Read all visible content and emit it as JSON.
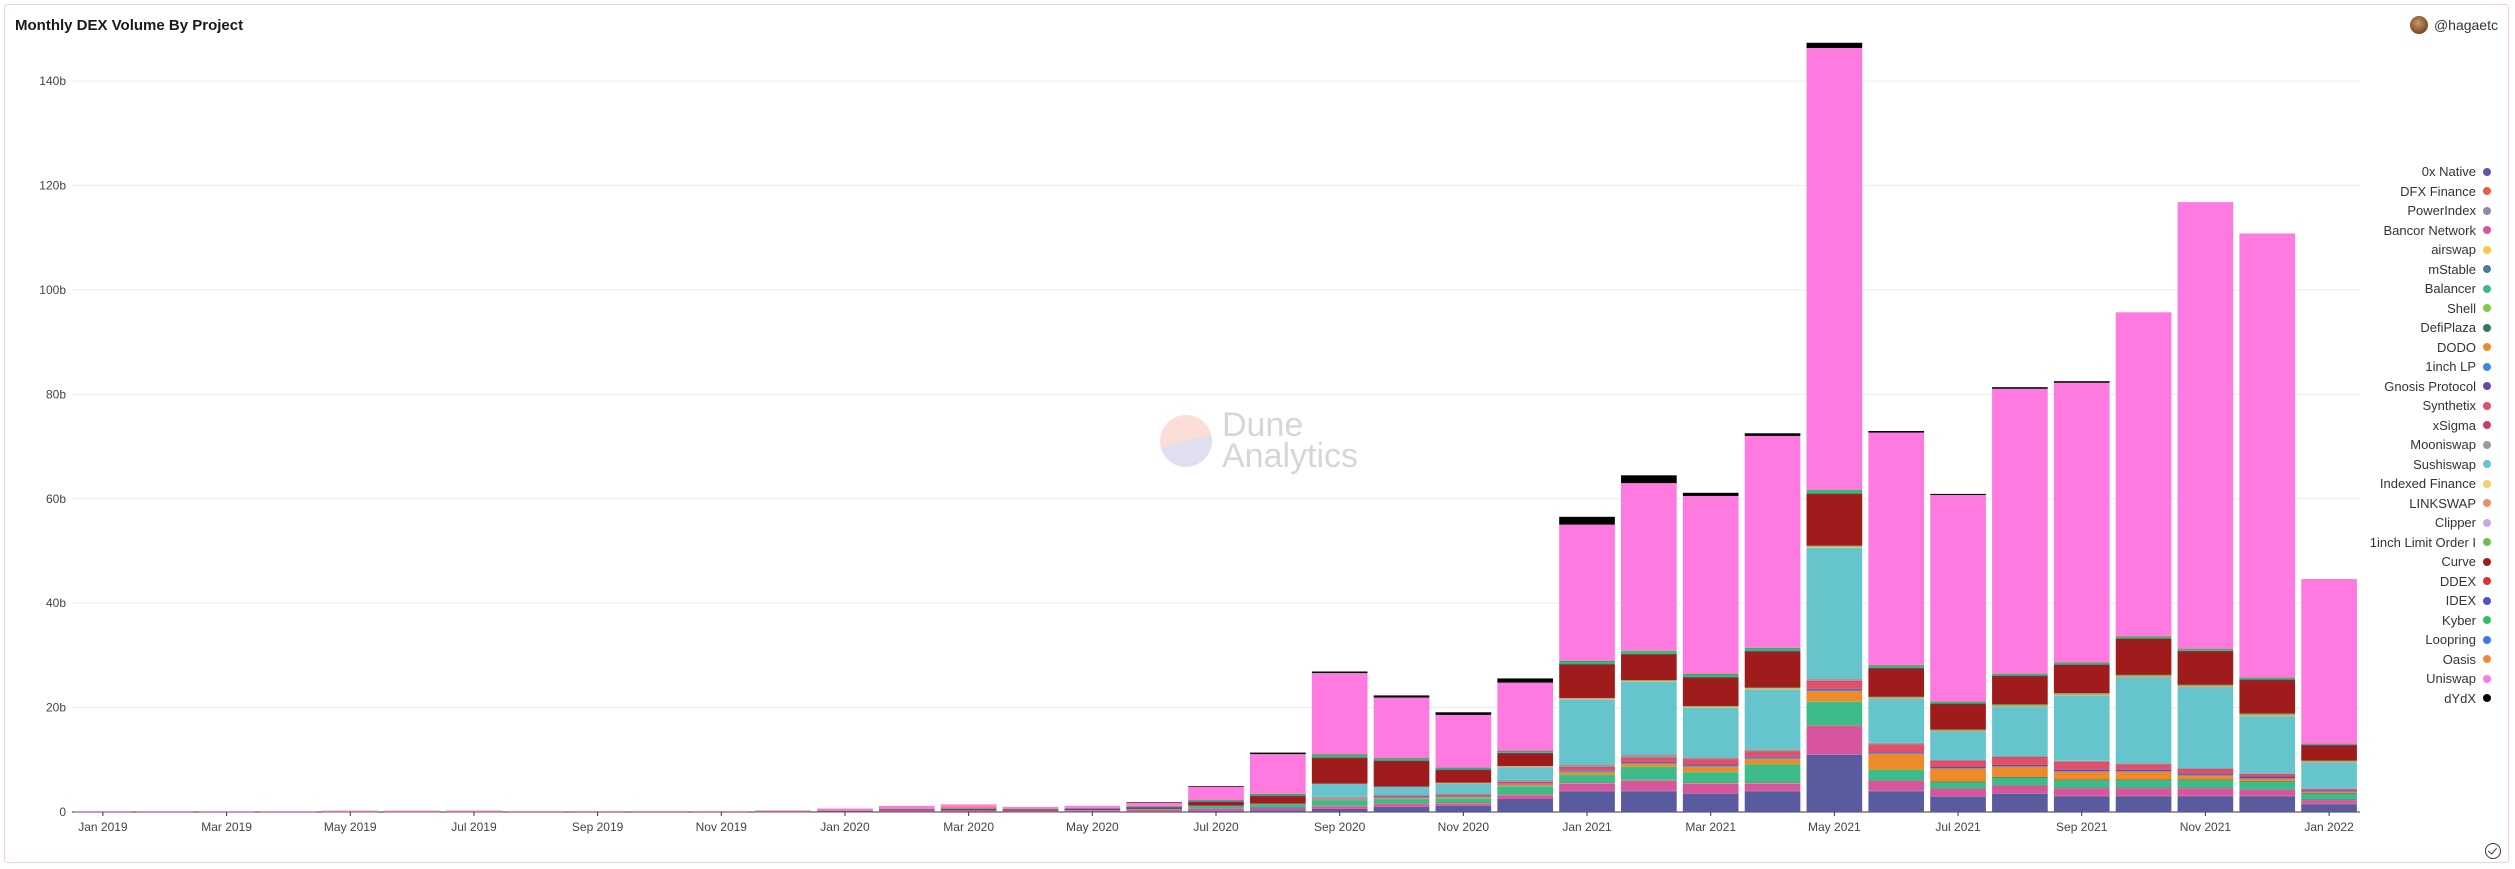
{
  "header": {
    "title": "Monthly DEX Volume By Project",
    "user": "@hagaetc"
  },
  "watermark": {
    "line1": "Dune",
    "line2": "Analytics"
  },
  "chart_data": {
    "type": "bar",
    "stacked": true,
    "title": "Monthly DEX Volume By Project",
    "ylim": [
      0,
      145
    ],
    "yunit": "b",
    "yticks": [
      "0",
      "20b",
      "40b",
      "60b",
      "80b",
      "100b",
      "120b",
      "140b"
    ],
    "ytick_values": [
      0,
      20,
      40,
      60,
      80,
      100,
      120,
      140
    ],
    "legend_position": "right",
    "categories": [
      "Jan 2019",
      "Feb 2019",
      "Mar 2019",
      "Apr 2019",
      "May 2019",
      "Jun 2019",
      "Jul 2019",
      "Aug 2019",
      "Sep 2019",
      "Oct 2019",
      "Nov 2019",
      "Dec 2019",
      "Jan 2020",
      "Feb 2020",
      "Mar 2020",
      "Apr 2020",
      "May 2020",
      "Jun 2020",
      "Jul 2020",
      "Aug 2020",
      "Sep 2020",
      "Oct 2020",
      "Nov 2020",
      "Dec 2020",
      "Jan 2021",
      "Feb 2021",
      "Mar 2021",
      "Apr 2021",
      "May 2021",
      "Jun 2021",
      "Jul 2021",
      "Aug 2021",
      "Sep 2021",
      "Oct 2021",
      "Nov 2021",
      "Dec 2021",
      "Jan 2022"
    ],
    "xtick_labels": [
      "Jan 2019",
      "Mar 2019",
      "May 2019",
      "Jul 2019",
      "Sep 2019",
      "Nov 2019",
      "Jan 2020",
      "Mar 2020",
      "May 2020",
      "Jul 2020",
      "Sep 2020",
      "Nov 2020",
      "Jan 2021",
      "Mar 2021",
      "May 2021",
      "Jul 2021",
      "Sep 2021",
      "Nov 2021",
      "Jan 2022"
    ],
    "series": [
      {
        "name": "0x Native",
        "color": "#5a5a9e",
        "values": [
          0.01,
          0.01,
          0.01,
          0.01,
          0.02,
          0.02,
          0.02,
          0.01,
          0.01,
          0.01,
          0.01,
          0.02,
          0.03,
          0.05,
          0.08,
          0.05,
          0.05,
          0.1,
          0.2,
          0.3,
          0.6,
          1.0,
          1.2,
          2.5,
          4.0,
          4.0,
          3.5,
          4.0,
          11.0,
          4.0,
          3.0,
          3.5,
          3.0,
          3.0,
          3.0,
          3.0,
          1.5
        ]
      },
      {
        "name": "DFX Finance",
        "color": "#f05a3a",
        "values": [
          0,
          0,
          0,
          0,
          0,
          0,
          0,
          0,
          0,
          0,
          0,
          0,
          0,
          0,
          0,
          0,
          0,
          0,
          0,
          0,
          0,
          0,
          0,
          0,
          0,
          0,
          0,
          0,
          0,
          0,
          0,
          0.1,
          0.1,
          0.1,
          0.1,
          0.1,
          0.05
        ]
      },
      {
        "name": "PowerIndex",
        "color": "#8a8aa0",
        "values": [
          0,
          0,
          0,
          0,
          0,
          0,
          0,
          0,
          0,
          0,
          0,
          0,
          0,
          0,
          0,
          0,
          0,
          0,
          0,
          0,
          0,
          0,
          0,
          0,
          0.05,
          0.05,
          0.05,
          0.05,
          0.05,
          0.05,
          0.03,
          0.02,
          0.02,
          0.02,
          0.02,
          0.02,
          0.01
        ]
      },
      {
        "name": "Bancor Network",
        "color": "#d6559e",
        "values": [
          0.02,
          0.02,
          0.02,
          0.02,
          0.05,
          0.05,
          0.05,
          0.03,
          0.03,
          0.03,
          0.03,
          0.05,
          0.1,
          0.3,
          0.3,
          0.2,
          0.2,
          0.3,
          0.5,
          0.5,
          0.6,
          0.6,
          0.5,
          0.8,
          1.5,
          2.0,
          2.0,
          1.5,
          5.5,
          2.0,
          1.5,
          1.5,
          1.5,
          1.5,
          1.5,
          1.2,
          0.8
        ]
      },
      {
        "name": "airswap",
        "color": "#f5c842",
        "values": [
          0,
          0,
          0,
          0,
          0,
          0,
          0,
          0,
          0,
          0,
          0,
          0,
          0,
          0,
          0,
          0,
          0,
          0,
          0,
          0,
          0.01,
          0.01,
          0.01,
          0.01,
          0.02,
          0.02,
          0.02,
          0.02,
          0.02,
          0.02,
          0.01,
          0.01,
          0.01,
          0.01,
          0.01,
          0.01,
          0.01
        ]
      },
      {
        "name": "mStable",
        "color": "#4a7aa0",
        "values": [
          0,
          0,
          0,
          0,
          0,
          0,
          0,
          0,
          0,
          0,
          0,
          0,
          0,
          0,
          0,
          0,
          0,
          0,
          0,
          0.05,
          0.1,
          0.1,
          0.1,
          0.1,
          0.1,
          0.1,
          0.1,
          0.1,
          0.1,
          0.05,
          0.05,
          0.05,
          0.05,
          0.05,
          0.05,
          0.05,
          0.03
        ]
      },
      {
        "name": "Balancer",
        "color": "#3dbb8a",
        "values": [
          0,
          0,
          0,
          0,
          0,
          0,
          0,
          0,
          0,
          0,
          0,
          0,
          0,
          0,
          0,
          0,
          0.1,
          0.2,
          0.5,
          0.7,
          1.0,
          0.8,
          0.8,
          1.5,
          1.5,
          2.5,
          2.0,
          3.5,
          4.5,
          2.0,
          1.2,
          1.5,
          1.5,
          1.5,
          1.5,
          1.5,
          1.2
        ]
      },
      {
        "name": "Shell",
        "color": "#7fc94a",
        "values": [
          0,
          0,
          0,
          0,
          0,
          0,
          0,
          0,
          0,
          0,
          0,
          0,
          0,
          0,
          0,
          0,
          0,
          0,
          0,
          0,
          0.02,
          0.02,
          0.02,
          0.02,
          0.02,
          0.02,
          0.02,
          0.02,
          0.02,
          0.02,
          0.01,
          0.01,
          0.01,
          0.01,
          0.01,
          0.01,
          0
        ]
      },
      {
        "name": "DefiPlaza",
        "color": "#2d7a60",
        "values": [
          0,
          0,
          0,
          0,
          0,
          0,
          0,
          0,
          0,
          0,
          0,
          0,
          0,
          0,
          0,
          0,
          0,
          0,
          0,
          0,
          0,
          0,
          0,
          0,
          0,
          0,
          0,
          0,
          0,
          0,
          0.02,
          0.02,
          0.02,
          0.02,
          0.02,
          0.02,
          0.01
        ]
      },
      {
        "name": "DODO",
        "color": "#ef8a2a",
        "values": [
          0,
          0,
          0,
          0,
          0,
          0,
          0,
          0,
          0,
          0,
          0,
          0,
          0,
          0,
          0,
          0,
          0,
          0,
          0,
          0,
          0.1,
          0.1,
          0.2,
          0.3,
          0.5,
          0.6,
          1.0,
          1.0,
          2.0,
          3.0,
          2.5,
          2.0,
          1.5,
          1.5,
          0.8,
          0.5,
          0.3
        ]
      },
      {
        "name": "1inch LP",
        "color": "#3a8ae0",
        "values": [
          0,
          0,
          0,
          0,
          0,
          0,
          0,
          0,
          0,
          0,
          0,
          0,
          0,
          0,
          0,
          0,
          0,
          0,
          0,
          0,
          0.1,
          0.2,
          0.2,
          0.2,
          0.2,
          0.2,
          0.2,
          0.2,
          0.2,
          0.1,
          0.1,
          0.1,
          0.1,
          0.1,
          0.1,
          0.1,
          0.05
        ]
      },
      {
        "name": "Gnosis Protocol",
        "color": "#6a4aa0",
        "values": [
          0,
          0,
          0,
          0,
          0,
          0,
          0,
          0,
          0,
          0,
          0,
          0,
          0,
          0,
          0,
          0,
          0,
          0,
          0,
          0,
          0,
          0,
          0,
          0,
          0.1,
          0.1,
          0.2,
          0.2,
          0.2,
          0.2,
          0.2,
          0.2,
          0.3,
          0.3,
          0.3,
          0.3,
          0.2
        ]
      },
      {
        "name": "Synthetix",
        "color": "#e0506a",
        "values": [
          0,
          0,
          0,
          0,
          0,
          0,
          0,
          0,
          0,
          0,
          0,
          0,
          0,
          0,
          0,
          0,
          0,
          0,
          0,
          0,
          0.1,
          0.2,
          0.2,
          0.3,
          0.6,
          0.8,
          1.0,
          1.0,
          1.5,
          1.5,
          1.2,
          1.5,
          1.5,
          1.0,
          0.8,
          0.5,
          0.3
        ]
      },
      {
        "name": "xSigma",
        "color": "#d0386a",
        "values": [
          0,
          0,
          0,
          0,
          0,
          0,
          0,
          0,
          0,
          0,
          0,
          0,
          0,
          0,
          0,
          0,
          0,
          0,
          0,
          0,
          0,
          0.02,
          0.02,
          0.02,
          0.02,
          0.02,
          0.02,
          0.02,
          0.02,
          0.02,
          0.01,
          0.01,
          0.01,
          0.01,
          0.01,
          0.01,
          0
        ]
      },
      {
        "name": "Mooniswap",
        "color": "#9a9a9a",
        "values": [
          0,
          0,
          0,
          0,
          0,
          0,
          0,
          0,
          0,
          0,
          0,
          0,
          0,
          0,
          0,
          0,
          0,
          0,
          0,
          0.05,
          0.3,
          0.3,
          0.3,
          0.4,
          0.5,
          0.6,
          0.4,
          0.4,
          0.5,
          0.3,
          0.2,
          0.2,
          0.2,
          0.2,
          0.2,
          0.1,
          0.1
        ]
      },
      {
        "name": "Sushiswap",
        "color": "#66c5cc",
        "values": [
          0,
          0,
          0,
          0,
          0,
          0,
          0,
          0,
          0,
          0,
          0,
          0,
          0,
          0,
          0,
          0,
          0,
          0,
          0,
          0,
          2.5,
          1.5,
          2.0,
          2.5,
          12.5,
          14.0,
          9.5,
          11.5,
          25.0,
          8.5,
          5.5,
          9.5,
          12.5,
          16.5,
          15.5,
          11.0,
          5.0
        ]
      },
      {
        "name": "Indexed Finance",
        "color": "#f5d06a",
        "values": [
          0,
          0,
          0,
          0,
          0,
          0,
          0,
          0,
          0,
          0,
          0,
          0,
          0,
          0,
          0,
          0,
          0,
          0,
          0,
          0,
          0,
          0,
          0.02,
          0.05,
          0.1,
          0.1,
          0.1,
          0.1,
          0.1,
          0.05,
          0.02,
          0.02,
          0.02,
          0.02,
          0.02,
          0.02,
          0.01
        ]
      },
      {
        "name": "LINKSWAP",
        "color": "#f28a6a",
        "values": [
          0,
          0,
          0,
          0,
          0,
          0,
          0,
          0,
          0,
          0,
          0,
          0,
          0,
          0,
          0,
          0,
          0,
          0,
          0,
          0,
          0,
          0,
          0.05,
          0.1,
          0.1,
          0.1,
          0.1,
          0.1,
          0.1,
          0.05,
          0.02,
          0.02,
          0.02,
          0.02,
          0.02,
          0.02,
          0.01
        ]
      },
      {
        "name": "Clipper",
        "color": "#c8a8e8",
        "values": [
          0,
          0,
          0,
          0,
          0,
          0,
          0,
          0,
          0,
          0,
          0,
          0,
          0,
          0,
          0,
          0,
          0,
          0,
          0,
          0,
          0,
          0,
          0,
          0,
          0,
          0,
          0,
          0,
          0,
          0,
          0,
          0.05,
          0.1,
          0.1,
          0.1,
          0.1,
          0.05
        ]
      },
      {
        "name": "1inch Limit Order I",
        "color": "#6ac04a",
        "values": [
          0,
          0,
          0,
          0,
          0,
          0,
          0,
          0,
          0,
          0,
          0,
          0,
          0,
          0,
          0,
          0,
          0,
          0,
          0,
          0,
          0,
          0,
          0,
          0,
          0,
          0.05,
          0.1,
          0.1,
          0.2,
          0.2,
          0.2,
          0.3,
          0.3,
          0.3,
          0.3,
          0.3,
          0.2
        ]
      },
      {
        "name": "Curve",
        "color": "#a01c1c",
        "values": [
          0,
          0,
          0,
          0,
          0,
          0,
          0.01,
          0.01,
          0.01,
          0.01,
          0.01,
          0.02,
          0.05,
          0.1,
          0.2,
          0.2,
          0.2,
          0.3,
          0.8,
          1.5,
          5.0,
          5.0,
          2.5,
          2.5,
          6.5,
          5.0,
          5.5,
          7.0,
          10.0,
          5.5,
          5.0,
          5.5,
          5.5,
          7.0,
          6.5,
          6.5,
          3.0
        ]
      },
      {
        "name": "DDEX",
        "color": "#e03030",
        "values": [
          0.01,
          0.01,
          0.01,
          0.01,
          0.01,
          0.01,
          0.01,
          0.01,
          0.01,
          0.01,
          0.01,
          0.01,
          0.01,
          0.01,
          0.01,
          0.01,
          0.01,
          0.01,
          0.01,
          0.01,
          0.01,
          0.01,
          0.01,
          0.01,
          0.01,
          0.01,
          0.01,
          0.01,
          0.01,
          0,
          0,
          0,
          0,
          0,
          0,
          0,
          0
        ]
      },
      {
        "name": "IDEX",
        "color": "#5050d0",
        "values": [
          0.02,
          0.02,
          0.02,
          0.02,
          0.02,
          0.02,
          0.02,
          0.02,
          0.02,
          0.02,
          0.02,
          0.02,
          0.02,
          0.02,
          0.02,
          0.02,
          0.02,
          0.02,
          0.02,
          0.02,
          0.02,
          0.02,
          0.02,
          0.02,
          0.02,
          0.02,
          0.02,
          0.02,
          0.02,
          0.02,
          0.01,
          0.01,
          0.01,
          0.01,
          0.01,
          0.01,
          0.01
        ]
      },
      {
        "name": "Kyber",
        "color": "#30c060",
        "values": [
          0.05,
          0.05,
          0.05,
          0.05,
          0.05,
          0.05,
          0.05,
          0.05,
          0.05,
          0.05,
          0.05,
          0.05,
          0.1,
          0.1,
          0.15,
          0.1,
          0.1,
          0.15,
          0.2,
          0.3,
          0.5,
          0.4,
          0.3,
          0.3,
          0.5,
          0.5,
          0.5,
          0.5,
          0.6,
          0.4,
          0.3,
          0.3,
          0.3,
          0.3,
          0.3,
          0.3,
          0.2
        ]
      },
      {
        "name": "Loopring",
        "color": "#3a7ae0",
        "values": [
          0,
          0,
          0,
          0,
          0,
          0,
          0,
          0,
          0,
          0,
          0,
          0,
          0,
          0,
          0,
          0,
          0.01,
          0.02,
          0.05,
          0.05,
          0.05,
          0.05,
          0.05,
          0.05,
          0.1,
          0.1,
          0.1,
          0.1,
          0.1,
          0.1,
          0.1,
          0.1,
          0.1,
          0.1,
          0.1,
          0.1,
          0.05
        ]
      },
      {
        "name": "Oasis",
        "color": "#f08a3a",
        "values": [
          0.01,
          0.01,
          0.01,
          0.01,
          0.02,
          0.02,
          0.02,
          0.02,
          0.02,
          0.02,
          0.02,
          0.05,
          0.05,
          0.1,
          0.2,
          0.1,
          0.1,
          0.1,
          0.1,
          0.1,
          0.1,
          0.1,
          0.1,
          0.1,
          0.1,
          0.1,
          0.1,
          0.1,
          0.1,
          0.1,
          0.05,
          0.05,
          0.05,
          0.05,
          0.05,
          0.05,
          0.03
        ]
      },
      {
        "name": "Uniswap",
        "color": "#fe7ae0",
        "values": [
          0.05,
          0.05,
          0.05,
          0.05,
          0.1,
          0.1,
          0.1,
          0.05,
          0.05,
          0.05,
          0.05,
          0.1,
          0.3,
          0.5,
          0.5,
          0.3,
          0.4,
          0.6,
          2.5,
          7.5,
          15.5,
          11.5,
          10.0,
          13.0,
          26.0,
          32.0,
          34.0,
          40.5,
          84.5,
          44.5,
          39.5,
          54.5,
          53.5,
          62.0,
          85.5,
          85.0,
          31.5
        ]
      },
      {
        "name": "dYdX",
        "color": "#000000",
        "values": [
          0,
          0,
          0,
          0,
          0,
          0,
          0,
          0,
          0,
          0,
          0,
          0,
          0,
          0,
          0,
          0,
          0,
          0.05,
          0.1,
          0.3,
          0.3,
          0.4,
          0.5,
          0.8,
          1.5,
          1.5,
          0.6,
          0.5,
          1.0,
          0.3,
          0.2,
          0.3,
          0.3,
          0,
          0,
          0,
          0
        ]
      }
    ]
  }
}
